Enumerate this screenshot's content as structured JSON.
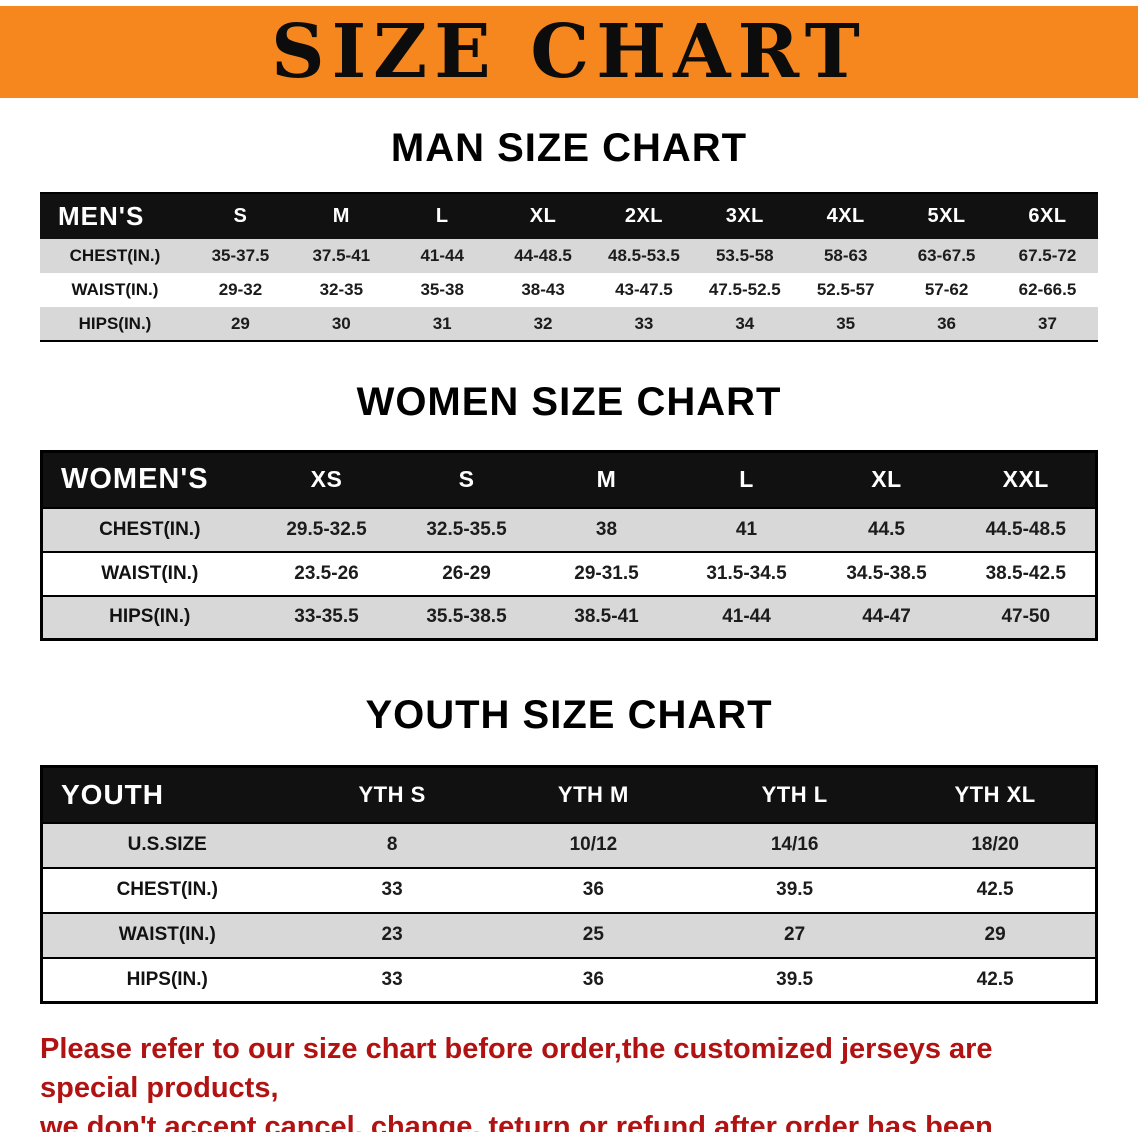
{
  "banner": {
    "title": "SIZE CHART"
  },
  "colors": {
    "banner_bg": "#f6871f",
    "table_header_bg": "#111111",
    "row_stripe": "#d8d8d8",
    "note_text": "#b11212"
  },
  "sections": [
    {
      "heading": "MAN SIZE CHART",
      "table": {
        "label": "MEN'S",
        "headers": [
          "S",
          "M",
          "L",
          "XL",
          "2XL",
          "3XL",
          "4XL",
          "5XL",
          "6XL"
        ],
        "rows": [
          {
            "label": "CHEST(IN.)",
            "values": [
              "35-37.5",
              "37.5-41",
              "41-44",
              "44-48.5",
              "48.5-53.5",
              "53.5-58",
              "58-63",
              "63-67.5",
              "67.5-72"
            ]
          },
          {
            "label": "WAIST(IN.)",
            "values": [
              "29-32",
              "32-35",
              "35-38",
              "38-43",
              "43-47.5",
              "47.5-52.5",
              "52.5-57",
              "57-62",
              "62-66.5"
            ]
          },
          {
            "label": "HIPS(IN.)",
            "values": [
              "29",
              "30",
              "31",
              "32",
              "33",
              "34",
              "35",
              "36",
              "37"
            ]
          }
        ]
      }
    },
    {
      "heading": "WOMEN SIZE CHART",
      "table": {
        "label": "WOMEN'S",
        "headers": [
          "XS",
          "S",
          "M",
          "L",
          "XL",
          "XXL"
        ],
        "rows": [
          {
            "label": "CHEST(IN.)",
            "values": [
              "29.5-32.5",
              "32.5-35.5",
              "38",
              "41",
              "44.5",
              "44.5-48.5"
            ]
          },
          {
            "label": "WAIST(IN.)",
            "values": [
              "23.5-26",
              "26-29",
              "29-31.5",
              "31.5-34.5",
              "34.5-38.5",
              "38.5-42.5"
            ]
          },
          {
            "label": "HIPS(IN.)",
            "values": [
              "33-35.5",
              "35.5-38.5",
              "38.5-41",
              "41-44",
              "44-47",
              "47-50"
            ]
          }
        ]
      }
    },
    {
      "heading": "YOUTH SIZE CHART",
      "table": {
        "label": "YOUTH",
        "headers": [
          "YTH S",
          "YTH M",
          "YTH L",
          "YTH XL"
        ],
        "rows": [
          {
            "label": "U.S.SIZE",
            "values": [
              "8",
              "10/12",
              "14/16",
              "18/20"
            ]
          },
          {
            "label": "CHEST(IN.)",
            "values": [
              "33",
              "36",
              "39.5",
              "42.5"
            ]
          },
          {
            "label": "WAIST(IN.)",
            "values": [
              "23",
              "25",
              "27",
              "29"
            ]
          },
          {
            "label": "HIPS(IN.)",
            "values": [
              "33",
              "36",
              "39.5",
              "42.5"
            ]
          }
        ]
      }
    }
  ],
  "note": {
    "line1": "Please refer to our size chart before order,the customized jerseys are special products,",
    "line2": "we don't accept cancel, change, teturn or refund after order has been placed!"
  }
}
